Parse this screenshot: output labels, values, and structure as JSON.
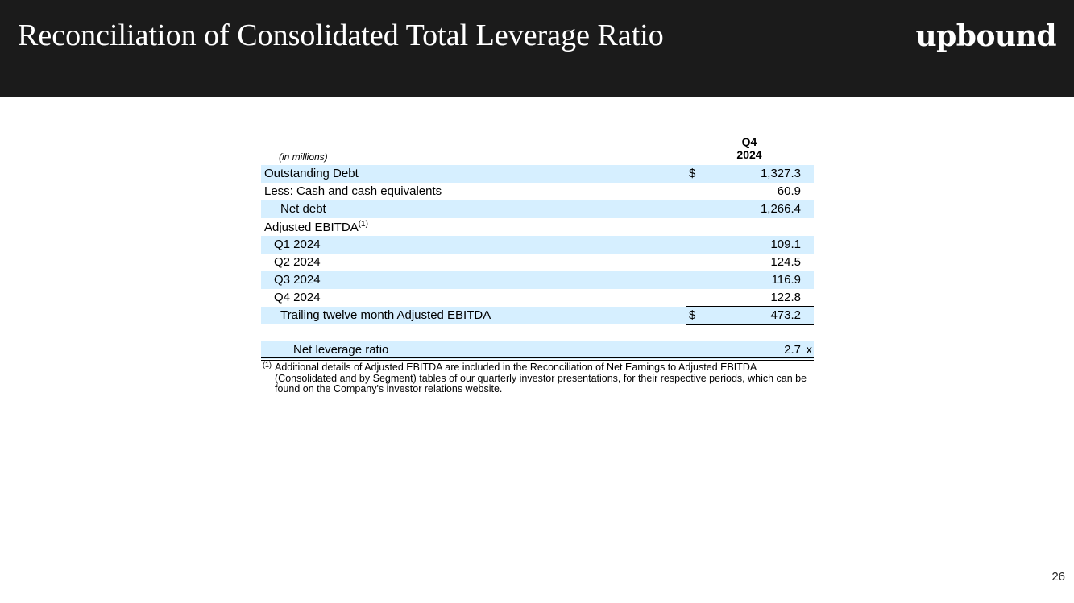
{
  "header": {
    "title": "Reconciliation of Consolidated Total Leverage Ratio",
    "logo_text": "upbound",
    "background": "#1b1b1b"
  },
  "table": {
    "units_label": "(in millions)",
    "column_header_line1": "Q4",
    "column_header_line2": "2024",
    "shade_color": "#d6efff",
    "rows": [
      {
        "label": "Outstanding Debt",
        "currency": "$",
        "value": "1,327.3"
      },
      {
        "label": "Less: Cash and cash equivalents",
        "currency": "",
        "value": "60.9"
      },
      {
        "label": "Net debt",
        "currency": "",
        "value": "1,266.4"
      },
      {
        "label": "Adjusted EBITDA",
        "footnote_ref": "(1)",
        "currency": "",
        "value": ""
      },
      {
        "label": "Q1 2024",
        "currency": "",
        "value": "109.1"
      },
      {
        "label": "Q2 2024",
        "currency": "",
        "value": "124.5"
      },
      {
        "label": "Q3 2024",
        "currency": "",
        "value": "116.9"
      },
      {
        "label": "Q4 2024",
        "currency": "",
        "value": "122.8"
      },
      {
        "label": "Trailing twelve month Adjusted EBITDA",
        "currency": "$",
        "value": "473.2"
      },
      {
        "label": "Net leverage ratio",
        "currency": "",
        "value": "2.7",
        "unit": "x"
      }
    ]
  },
  "footnote": {
    "marker": "(1)",
    "text": "Additional details of Adjusted EBITDA are included in the Reconciliation of Net Earnings to Adjusted EBITDA (Consolidated and by Segment) tables of our quarterly investor presentations, for their respective periods, which can be found on the Company's investor relations website."
  },
  "page_number": "26"
}
